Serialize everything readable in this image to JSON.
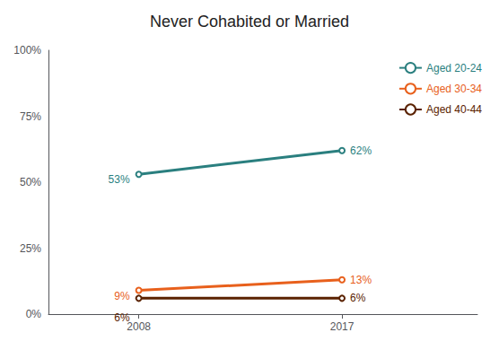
{
  "chart_data": {
    "type": "line",
    "title": "Never Cohabited or Married",
    "x": [
      2008,
      2017
    ],
    "series": [
      {
        "name": "Aged 20-24",
        "color": "#2a7f7f",
        "values": [
          53,
          62
        ],
        "value_labels": [
          "53%",
          "62%"
        ]
      },
      {
        "name": "Aged 30-34",
        "color": "#e8601c",
        "values": [
          9,
          13
        ],
        "value_labels": [
          "9%",
          "13%"
        ]
      },
      {
        "name": "Aged 40-44",
        "color": "#5a2200",
        "values": [
          6,
          6
        ],
        "value_labels": [
          "6%",
          "6%"
        ]
      }
    ],
    "xlim": [
      2004,
      2023
    ],
    "xticks": [
      2008,
      2017
    ],
    "ylim": [
      0,
      100
    ],
    "yticks": [
      {
        "value": 0,
        "label": "0%"
      },
      {
        "value": 25,
        "label": "25%"
      },
      {
        "value": 50,
        "label": "50%"
      },
      {
        "value": 75,
        "label": "75%"
      },
      {
        "value": 100,
        "label": "100%"
      }
    ],
    "grid": false,
    "legend": "upper right",
    "data_labels": true
  }
}
